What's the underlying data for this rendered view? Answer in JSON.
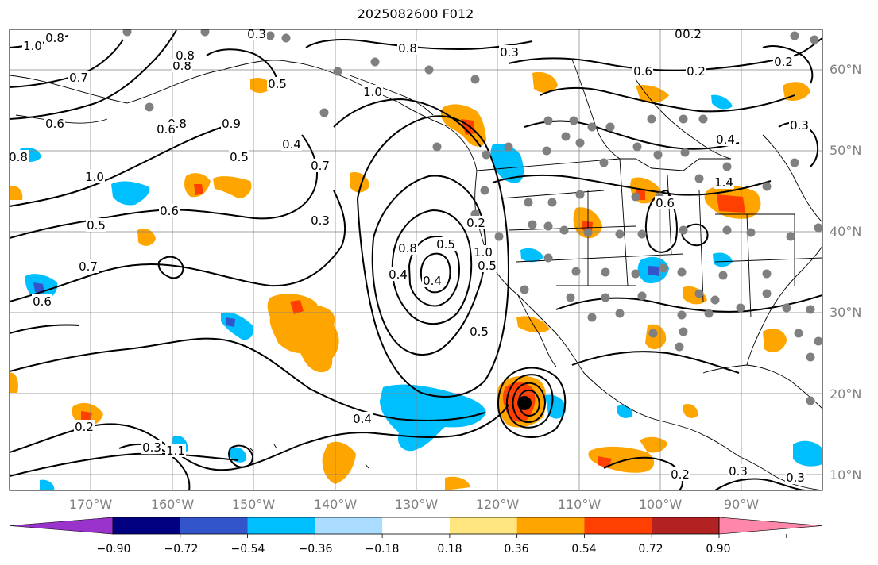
{
  "title": "2025082600 F012",
  "lat_labels": [
    "60°N",
    "50°N",
    "40°N",
    "30°N",
    "20°N",
    "10°N"
  ],
  "lon_labels": [
    "170°W",
    "160°W",
    "150°W",
    "140°W",
    "130°W",
    "120°W",
    "110°W",
    "100°W",
    "90°W"
  ],
  "colorbar": {
    "ticks": [
      "−0.90",
      "−0.72",
      "−0.54",
      "−0.36",
      "−0.18",
      "0.18",
      "0.36",
      "0.54",
      "0.72",
      "0.90"
    ],
    "colors": [
      "#9933cc",
      "#000080",
      "#3355cc",
      "#00bfff",
      "#aaddff",
      "#ffffff",
      "#ffe680",
      "#ffa500",
      "#ff4000",
      "#b22222",
      "#ff88aa"
    ]
  },
  "contour_labels": [
    "0.8",
    "1.0",
    "0.7",
    "0.6",
    "0.8",
    "0.8",
    "0.3",
    "0.5",
    "0.3",
    "1.0",
    "0.8",
    "0.9",
    "0.8",
    "0.6",
    "0.5",
    "0.7",
    "0.4",
    "0.6",
    "0.8",
    "0.3",
    "1.0",
    "0.3",
    "0.8",
    "0.2",
    "0.5",
    "0.7",
    "0.6",
    "0.5",
    "0.4",
    "1.0",
    "0.4",
    "0.5",
    "0.4",
    "0.5",
    "0.3",
    "1.1",
    "1.4",
    "0.6",
    "0.3",
    "0.2",
    "0.3",
    "0.2",
    "0.3",
    "0.2",
    "0.4",
    "0.2",
    "0.2",
    "0.6"
  ],
  "colors": {
    "land": "#000000",
    "grid": "#808080",
    "contour": "#000000",
    "station": "#808080"
  }
}
